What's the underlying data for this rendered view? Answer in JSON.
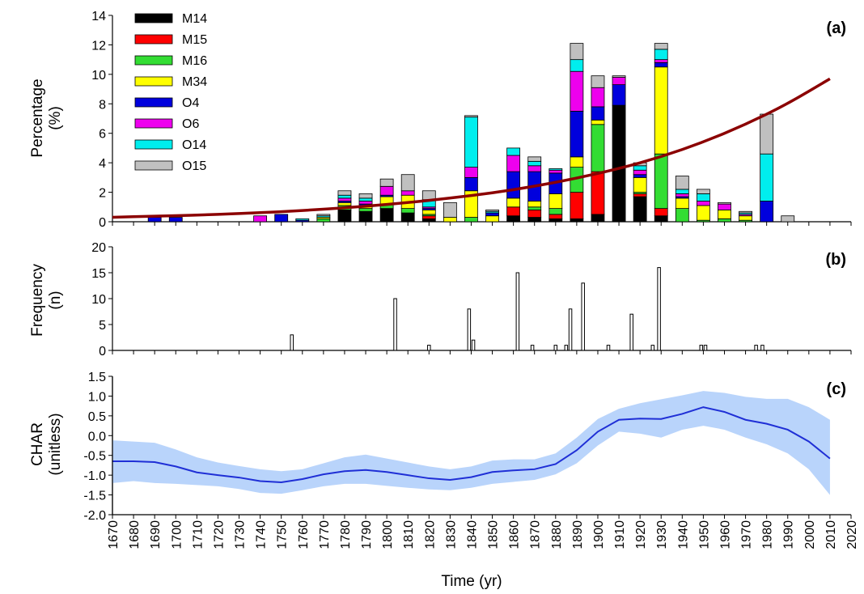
{
  "colors": {
    "M14": "#000000",
    "M15": "#ff0000",
    "M16": "#33dd33",
    "M34": "#ffff00",
    "O4": "#0000dd",
    "O6": "#ee00ee",
    "O14": "#00eeee",
    "O15": "#c0c0c0",
    "curve": "#8b0000",
    "char_line": "#1f2fd6",
    "char_band": "#b9d4fb"
  },
  "xaxis": {
    "label": "Time (yr)",
    "ticks": [
      "1670",
      "1680",
      "1690",
      "1700",
      "1710",
      "1720",
      "1730",
      "1740",
      "1750",
      "1760",
      "1770",
      "1780",
      "1790",
      "1800",
      "1810",
      "1820",
      "1830",
      "1840",
      "1850",
      "1860",
      "1870",
      "1880",
      "1890",
      "1900",
      "1910",
      "1920",
      "1930",
      "1940",
      "1950",
      "1960",
      "1970",
      "1980",
      "1990",
      "2000",
      "2010",
      "2020"
    ]
  },
  "chart_data": [
    {
      "panel": "(a)",
      "type": "bar",
      "stacked": true,
      "ylabel": [
        "Percentage",
        "(%)"
      ],
      "ylim": [
        0,
        14
      ],
      "yticks": [
        "0",
        "2",
        "4",
        "6",
        "8",
        "10",
        "12",
        "14"
      ],
      "legend": [
        "M14",
        "M15",
        "M16",
        "M34",
        "O4",
        "O6",
        "O14",
        "O15"
      ],
      "legend_position": "top-left",
      "x": [
        1690,
        1700,
        1740,
        1750,
        1760,
        1770,
        1780,
        1790,
        1800,
        1810,
        1820,
        1830,
        1840,
        1850,
        1860,
        1870,
        1880,
        1890,
        1900,
        1910,
        1920,
        1930,
        1940,
        1950,
        1960,
        1970,
        1980,
        1990
      ],
      "series": [
        {
          "name": "M14",
          "values": [
            0,
            0,
            0,
            0,
            0,
            0,
            0.8,
            0.7,
            0.9,
            0.6,
            0.2,
            0,
            0,
            0,
            0.4,
            0.3,
            0.2,
            0.2,
            0.5,
            7.9,
            1.7,
            0.4,
            0,
            0,
            0,
            0,
            0,
            0
          ]
        },
        {
          "name": "M15",
          "values": [
            0,
            0,
            0,
            0,
            0,
            0,
            0,
            0,
            0,
            0,
            0.2,
            0,
            0,
            0,
            0.6,
            0.5,
            0.3,
            1.8,
            2.9,
            0,
            0.2,
            0.5,
            0,
            0,
            0,
            0,
            0,
            0
          ]
        },
        {
          "name": "M16",
          "values": [
            0,
            0,
            0,
            0,
            0,
            0.2,
            0.3,
            0.2,
            0.3,
            0.3,
            0.1,
            0,
            0.3,
            0,
            0,
            0.2,
            0.4,
            1.7,
            3.2,
            0,
            0.1,
            3.7,
            0.9,
            0.1,
            0.2,
            0.1,
            0,
            0
          ]
        },
        {
          "name": "M34",
          "values": [
            0,
            0,
            0,
            0,
            0,
            0.1,
            0.2,
            0.2,
            0.5,
            0.9,
            0.3,
            0.3,
            1.8,
            0.4,
            0.6,
            0.4,
            1,
            0.7,
            0.3,
            0,
            1,
            5.9,
            0.7,
            1,
            0.6,
            0.3,
            0,
            0
          ]
        },
        {
          "name": "O4",
          "values": [
            0.3,
            0.3,
            0,
            0.5,
            0.1,
            0,
            0.1,
            0.1,
            0.1,
            0,
            0.1,
            0,
            0.9,
            0.2,
            1.8,
            2,
            1.4,
            3.1,
            0.9,
            1.4,
            0.2,
            0.3,
            0.1,
            0,
            0,
            0,
            1.4,
            0
          ]
        },
        {
          "name": "O6",
          "values": [
            0,
            0,
            0.4,
            0,
            0,
            0,
            0.2,
            0.2,
            0.6,
            0.3,
            0.1,
            0,
            0.7,
            0,
            1.1,
            0.4,
            0.2,
            2.7,
            1.3,
            0.5,
            0.3,
            0.2,
            0.2,
            0.3,
            0.4,
            0.1,
            0,
            0
          ]
        },
        {
          "name": "O14",
          "values": [
            0,
            0,
            0,
            0,
            0.1,
            0.1,
            0.2,
            0.2,
            0,
            0,
            0.5,
            0,
            3.4,
            0.1,
            0.5,
            0.3,
            0.1,
            0.8,
            0,
            0,
            0.3,
            0.7,
            0.3,
            0.5,
            0,
            0.1,
            3.2,
            0
          ]
        },
        {
          "name": "O15",
          "values": [
            0,
            0,
            0,
            0,
            0,
            0.1,
            0.3,
            0.3,
            0.5,
            1.1,
            0.6,
            1,
            0.1,
            0.1,
            0,
            0.3,
            0,
            1.1,
            0.8,
            0.1,
            0.2,
            0.4,
            0.9,
            0.3,
            0.1,
            0.1,
            2.7,
            0.4
          ]
        }
      ],
      "trend": {
        "x": [
          1670,
          1690,
          1710,
          1730,
          1750,
          1770,
          1790,
          1810,
          1830,
          1850,
          1870,
          1890,
          1910,
          1930,
          1950,
          1970,
          1990,
          2010
        ],
        "y": [
          0.3,
          0.38,
          0.45,
          0.55,
          0.68,
          0.85,
          1.05,
          1.3,
          1.6,
          1.95,
          2.4,
          2.95,
          3.6,
          4.4,
          5.4,
          6.6,
          8.0,
          9.7
        ]
      }
    },
    {
      "panel": "(b)",
      "type": "bar",
      "ylabel": [
        "Frequency",
        "(n)"
      ],
      "ylim": [
        0,
        20
      ],
      "yticks": [
        "0",
        "5",
        "10",
        "15",
        "20"
      ],
      "x": [
        1755,
        1804,
        1820,
        1839,
        1841,
        1862,
        1869,
        1880,
        1885,
        1887,
        1893,
        1905,
        1916,
        1926,
        1929,
        1949,
        1951,
        1975,
        1978
      ],
      "values": [
        3,
        10,
        1,
        8,
        2,
        15,
        1,
        1,
        1,
        8,
        13,
        1,
        7,
        1,
        16,
        1,
        1,
        1,
        1
      ]
    },
    {
      "panel": "(c)",
      "type": "line",
      "ylabel": [
        "CHAR",
        "(unitless)"
      ],
      "ylim": [
        -2.0,
        1.5
      ],
      "yticks": [
        "1.5",
        "1.0",
        "0.5",
        "0.0",
        "-0.5",
        "-1.0",
        "-1.5",
        "-2.0"
      ],
      "x": [
        1670,
        1680,
        1690,
        1700,
        1710,
        1720,
        1730,
        1740,
        1750,
        1760,
        1770,
        1780,
        1790,
        1800,
        1810,
        1820,
        1830,
        1840,
        1850,
        1860,
        1870,
        1880,
        1890,
        1900,
        1910,
        1920,
        1930,
        1940,
        1950,
        1960,
        1970,
        1980,
        1990,
        2000,
        2010
      ],
      "y": [
        -0.65,
        -0.65,
        -0.67,
        -0.78,
        -0.93,
        -1.0,
        -1.06,
        -1.15,
        -1.18,
        -1.1,
        -0.98,
        -0.9,
        -0.87,
        -0.92,
        -1.0,
        -1.08,
        -1.12,
        -1.05,
        -0.92,
        -0.88,
        -0.85,
        -0.72,
        -0.37,
        0.1,
        0.4,
        0.43,
        0.42,
        0.55,
        0.72,
        0.6,
        0.4,
        0.3,
        0.15,
        -0.15,
        -0.58
      ],
      "lower": [
        -1.2,
        -1.15,
        -1.2,
        -1.22,
        -1.25,
        -1.28,
        -1.35,
        -1.45,
        -1.47,
        -1.38,
        -1.28,
        -1.22,
        -1.22,
        -1.27,
        -1.32,
        -1.36,
        -1.38,
        -1.32,
        -1.22,
        -1.17,
        -1.12,
        -0.98,
        -0.7,
        -0.25,
        0.1,
        0.05,
        -0.05,
        0.15,
        0.25,
        0.15,
        -0.05,
        -0.22,
        -0.45,
        -0.85,
        -1.5
      ],
      "upper": [
        -0.12,
        -0.15,
        -0.18,
        -0.35,
        -0.55,
        -0.68,
        -0.77,
        -0.85,
        -0.9,
        -0.85,
        -0.7,
        -0.55,
        -0.48,
        -0.58,
        -0.68,
        -0.78,
        -0.85,
        -0.78,
        -0.63,
        -0.6,
        -0.6,
        -0.45,
        -0.05,
        0.42,
        0.68,
        0.82,
        0.92,
        1.02,
        1.13,
        1.08,
        0.98,
        0.93,
        0.93,
        0.72,
        0.4
      ]
    }
  ]
}
